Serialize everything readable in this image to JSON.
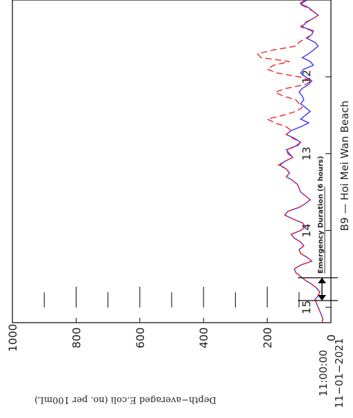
{
  "chart_data": {
    "type": "line",
    "title": "B9 — Hoi Mei Wan Beach",
    "ylabel": "Depth−averaged E.coli (no. per 100mL)",
    "x_start_label_time": "11:00:00",
    "x_start_label_date": "11−01−2021",
    "annotation": "Emergency Duration  (6 hours)",
    "x_ticks": [
      12,
      13,
      14,
      15
    ],
    "y_ticks": [
      0,
      200,
      400,
      600,
      800,
      1000
    ],
    "xlim": [
      11.0,
      15.2
    ],
    "ylim": [
      0,
      1000
    ],
    "emergency_window": [
      11.0,
      11.25
    ],
    "series": [
      {
        "color": "#3333ff",
        "dash": "solid",
        "x": [
          11.0,
          11.05,
          11.1,
          11.15,
          11.2,
          11.25,
          11.3,
          11.35,
          11.4,
          11.45,
          11.5,
          11.55,
          11.6,
          11.65,
          11.7,
          11.75,
          11.8,
          11.85,
          11.9,
          11.95,
          12.0,
          12.05,
          12.1,
          12.15,
          12.2,
          12.25,
          12.3,
          12.35,
          12.4,
          12.45,
          12.5,
          12.55,
          12.6,
          12.65,
          12.7,
          12.75,
          12.8,
          12.85,
          12.9,
          12.95,
          13.0,
          13.05,
          13.1,
          13.15,
          13.2,
          13.25,
          13.3,
          13.35,
          13.4,
          13.45,
          13.5,
          13.55,
          13.6,
          13.65,
          13.7,
          13.75,
          13.8,
          13.85,
          13.9,
          13.95,
          14.0,
          14.05,
          14.1,
          14.15,
          14.2,
          14.25,
          14.3,
          14.35,
          14.4,
          14.45,
          14.5,
          14.55,
          14.6,
          14.65,
          14.7,
          14.75,
          14.8,
          14.85,
          14.9,
          14.95,
          15.0,
          15.05,
          15.1,
          15.15,
          15.2
        ],
        "values": [
          75,
          95,
          70,
          55,
          40,
          60,
          80,
          90,
          55,
          60,
          75,
          50,
          40,
          55,
          70,
          90,
          65,
          55,
          85,
          95,
          80,
          60,
          70,
          90,
          100,
          90,
          85,
          95,
          80,
          65,
          80,
          95,
          70,
          95,
          125,
          140,
          115,
          95,
          110,
          140,
          130,
          120,
          145,
          160,
          140,
          130,
          140,
          120,
          105,
          100,
          95,
          80,
          65,
          80,
          100,
          135,
          145,
          120,
          90,
          80,
          95,
          125,
          115,
          95,
          85,
          100,
          95,
          75,
          60,
          95,
          115,
          110,
          95,
          80,
          60,
          45,
          35,
          40,
          50,
          45,
          40,
          35,
          30,
          25,
          28
        ]
      },
      {
        "color": "#ee2222",
        "dash": "dashed",
        "x": [
          11.0,
          11.05,
          11.1,
          11.15,
          11.2,
          11.25,
          11.3,
          11.35,
          11.4,
          11.45,
          11.5,
          11.55,
          11.6,
          11.65,
          11.7,
          11.75,
          11.8,
          11.85,
          11.9,
          11.95,
          12.0,
          12.05,
          12.1,
          12.15,
          12.2,
          12.25,
          12.3,
          12.35,
          12.4,
          12.45,
          12.5,
          12.55,
          12.6,
          12.65,
          12.7,
          12.75,
          12.8,
          12.85,
          12.9,
          12.95,
          13.0,
          13.05,
          13.1,
          13.15,
          13.2,
          13.25,
          13.3,
          13.35,
          13.4,
          13.45,
          13.5,
          13.55,
          13.6,
          13.65,
          13.7,
          13.75,
          13.8,
          13.85,
          13.9,
          13.95,
          14.0,
          14.05,
          14.1,
          14.15,
          14.2,
          14.25,
          14.3,
          14.35,
          14.4,
          14.45,
          14.5,
          14.55,
          14.6,
          14.65,
          14.7,
          14.75,
          14.8,
          14.85,
          14.9,
          14.95,
          15.0,
          15.05,
          15.1,
          15.15,
          15.2
        ],
        "values": [
          80,
          100,
          75,
          55,
          40,
          60,
          85,
          95,
          60,
          60,
          80,
          100,
          110,
          180,
          230,
          220,
          130,
          180,
          200,
          170,
          100,
          60,
          80,
          140,
          175,
          150,
          110,
          100,
          90,
          110,
          150,
          200,
          175,
          140,
          125,
          140,
          120,
          95,
          105,
          140,
          135,
          120,
          145,
          165,
          140,
          130,
          140,
          120,
          105,
          100,
          95,
          80,
          65,
          80,
          100,
          135,
          145,
          120,
          90,
          80,
          95,
          125,
          115,
          95,
          85,
          100,
          95,
          75,
          60,
          95,
          115,
          110,
          95,
          80,
          60,
          45,
          35,
          40,
          50,
          45,
          40,
          35,
          30,
          25,
          28
        ]
      }
    ]
  }
}
